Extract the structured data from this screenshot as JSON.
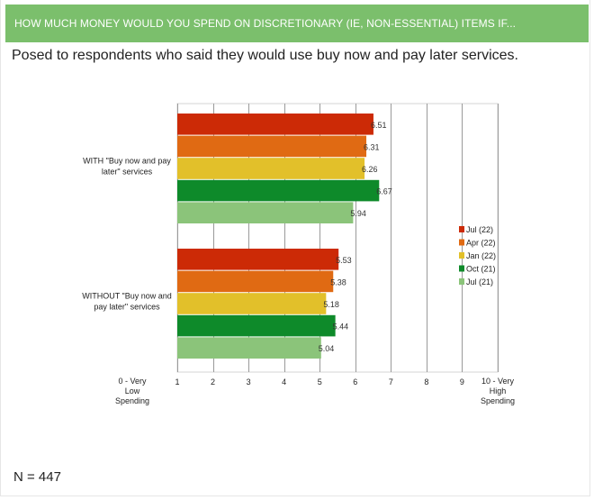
{
  "header": {
    "title": "HOW MUCH MONEY WOULD YOU SPEND ON DISCRETIONARY (IE, NON-ESSENTIAL) ITEMS IF..."
  },
  "subtitle": "Posed to respondents who said they would use buy now and pay later services.",
  "footnote": "N = 447",
  "chart_data": {
    "type": "bar",
    "orientation": "horizontal",
    "categories": [
      "WITH \"Buy now and pay later\" services",
      "WITHOUT \"Buy now and pay later\" services"
    ],
    "category_lines": [
      [
        "WITH \"Buy now and pay",
        "later\" services"
      ],
      [
        "WITHOUT \"Buy now and",
        "pay later\" services"
      ]
    ],
    "series": [
      {
        "name": "Jul (22)",
        "color": "#cc2a06",
        "values": [
          6.51,
          5.53
        ]
      },
      {
        "name": "Apr (22)",
        "color": "#e06a13",
        "values": [
          6.31,
          5.38
        ]
      },
      {
        "name": "Jan (22)",
        "color": "#e2c02a",
        "values": [
          6.26,
          5.18
        ]
      },
      {
        "name": "Oct (21)",
        "color": "#0e8a2a",
        "values": [
          6.67,
          5.44
        ]
      },
      {
        "name": "Jul (21)",
        "color": "#8bc47a",
        "values": [
          5.94,
          5.04
        ]
      }
    ],
    "xlim": [
      1,
      10
    ],
    "x_ticks": [
      {
        "value": 1,
        "label": "1"
      },
      {
        "value": 2,
        "label": "2"
      },
      {
        "value": 3,
        "label": "3"
      },
      {
        "value": 4,
        "label": "4"
      },
      {
        "value": 5,
        "label": "5"
      },
      {
        "value": 6,
        "label": "6"
      },
      {
        "value": 7,
        "label": "7"
      },
      {
        "value": 8,
        "label": "8"
      },
      {
        "value": 9,
        "label": "9"
      },
      {
        "value": 10,
        "label": "10 - Very High Spending",
        "lines": [
          "10 - Very",
          "High",
          "Spending"
        ]
      }
    ],
    "x_start_label": [
      "0 - Very",
      "Low",
      "Spending"
    ],
    "grid": true,
    "legend_position": "right"
  }
}
